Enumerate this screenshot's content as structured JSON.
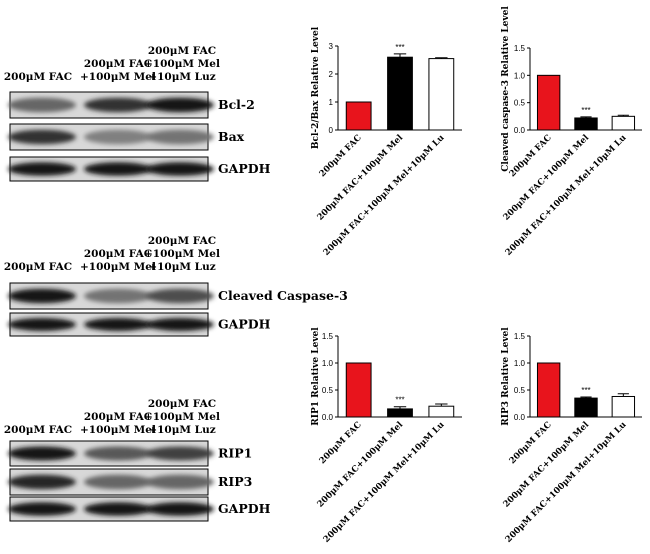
{
  "chart_data": [
    {
      "type": "bar",
      "ylabel": "Bcl-2/Bax Relative Level",
      "categories": [
        "200μM FAC",
        "200μM FAC+100μM Mel",
        "200μM FAC+100μM Mel+10μM Lu"
      ],
      "values": [
        1.0,
        2.6,
        2.55
      ],
      "errors": [
        0,
        0.12,
        0.03
      ],
      "colors": [
        "#e8141c",
        "#000000",
        "#ffffff"
      ],
      "ylim": [
        0,
        3
      ],
      "yticks": [
        0,
        1,
        2,
        3
      ],
      "annotations": [
        {
          "category": "200μM FAC+100μM Mel",
          "text": "***"
        }
      ]
    },
    {
      "type": "bar",
      "ylabel": "Cleaved caspase-3 Relative Level",
      "categories": [
        "200μM FAC",
        "200μM FAC+100μM Mel",
        "200μM FAC+100μM Mel+10μM Lu"
      ],
      "values": [
        1.0,
        0.22,
        0.25
      ],
      "errors": [
        0,
        0.02,
        0.02
      ],
      "colors": [
        "#e8141c",
        "#000000",
        "#ffffff"
      ],
      "ylim": [
        0,
        1.5
      ],
      "yticks": [
        {
          "value": 0,
          "label": "0.0"
        },
        0.5,
        {
          "value": 1,
          "label": "1.0"
        },
        1.5
      ],
      "annotations": [
        {
          "category": "200μM FAC+100μM Mel",
          "text": "***"
        }
      ]
    },
    {
      "type": "bar",
      "ylabel": "RIP1 Relative Level",
      "categories": [
        "200μM FAC",
        "200μM FAC+100μM Mel",
        "200μM FAC+100μM Mel+10μM Lu"
      ],
      "values": [
        1.0,
        0.15,
        0.2
      ],
      "errors": [
        0,
        0.04,
        0.04
      ],
      "colors": [
        "#e8141c",
        "#000000",
        "#ffffff"
      ],
      "ylim": [
        0,
        1.5
      ],
      "yticks": [
        {
          "value": 0,
          "label": "0.0"
        },
        0.5,
        {
          "value": 1,
          "label": "1.0"
        },
        1.5
      ],
      "annotations": [
        {
          "category": "200μM FAC+100μM Mel",
          "text": "***"
        }
      ]
    },
    {
      "type": "bar",
      "ylabel": "RIP3 Relative Level",
      "categories": [
        "200μM FAC",
        "200μM FAC+100μM Mel",
        "200μM FAC+100μM Mel+10μM Lu"
      ],
      "values": [
        1.0,
        0.35,
        0.38
      ],
      "errors": [
        0,
        0.02,
        0.05
      ],
      "colors": [
        "#e8141c",
        "#000000",
        "#ffffff"
      ],
      "ylim": [
        0,
        1.5
      ],
      "yticks": [
        {
          "value": 0,
          "label": "0.0"
        },
        0.5,
        {
          "value": 1,
          "label": "1.0"
        },
        1.5
      ],
      "annotations": [
        {
          "category": "200μM FAC+100μM Mel",
          "text": "***"
        }
      ]
    }
  ],
  "blots": [
    {
      "lanes": [
        [
          "200μM FAC"
        ],
        [
          "200μM FAC",
          "+100μM Mel"
        ],
        [
          "200μM FAC",
          "+100μM Mel",
          "+10μM Luz"
        ]
      ],
      "bands": [
        "Bcl-2",
        "Bax",
        "GAPDH"
      ]
    },
    {
      "lanes": [
        [
          "200μM FAC"
        ],
        [
          "200μM FAC",
          "+100μM Mel"
        ],
        [
          "200μM FAC",
          "+100μM Mel",
          "+10μM Luz"
        ]
      ],
      "bands": [
        "Cleaved Caspase-3",
        "GAPDH"
      ]
    },
    {
      "lanes": [
        [
          "200μM FAC"
        ],
        [
          "200μM FAC",
          "+100μM Mel"
        ],
        [
          "200μM FAC",
          "+100μM Mel",
          "+10μM Luz"
        ]
      ],
      "bands": [
        "RIP1",
        "RIP3",
        "GAPDH"
      ]
    }
  ]
}
